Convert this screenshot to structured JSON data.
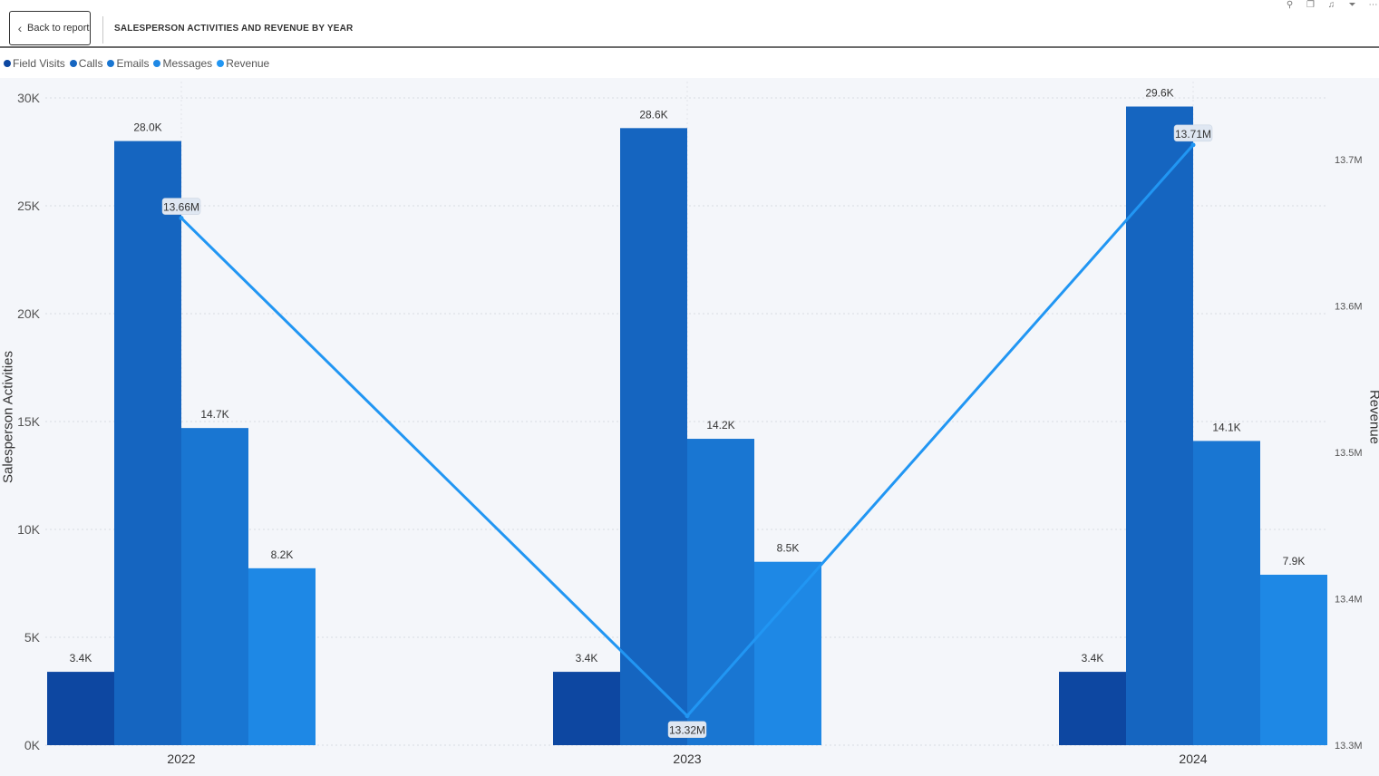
{
  "header": {
    "back_label": "Back to report",
    "title": "SALESPERSON ACTIVITIES AND REVENUE BY YEAR"
  },
  "icons": [
    "pin-icon",
    "copy-icon",
    "bell-icon",
    "filter-icon",
    "more-icon"
  ],
  "colors": {
    "field_visits": "#0d47a1",
    "calls": "#1565c0",
    "emails": "#1976d2",
    "messages": "#1e88e5",
    "revenue": "#2196f3"
  },
  "chart_data": {
    "type": "bar",
    "categories": [
      "2022",
      "2023",
      "2024"
    ],
    "ylabel": "Salesperson Activities",
    "y2label": "Revenue",
    "ylim": [
      0,
      30000
    ],
    "y2lim": [
      13.3,
      13.75
    ],
    "y_ticks": [
      "0K",
      "5K",
      "10K",
      "15K",
      "20K",
      "25K",
      "30K"
    ],
    "y2_ticks": [
      "13.3M",
      "13.4M",
      "13.5M",
      "13.6M",
      "13.7M"
    ],
    "grid": true,
    "legend_position": "top-left",
    "series": [
      {
        "name": "Field Visits",
        "values": [
          3400,
          3400,
          3400
        ],
        "labels": [
          "3.4K",
          "3.4K",
          "3.4K"
        ]
      },
      {
        "name": "Calls",
        "values": [
          28000,
          28600,
          29600
        ],
        "labels": [
          "28.0K",
          "28.6K",
          "29.6K"
        ]
      },
      {
        "name": "Emails",
        "values": [
          14700,
          14200,
          14100
        ],
        "labels": [
          "14.7K",
          "14.2K",
          "14.1K"
        ]
      },
      {
        "name": "Messages",
        "values": [
          8200,
          8500,
          7900
        ],
        "labels": [
          "8.2K",
          "8.5K",
          "7.9K"
        ]
      }
    ],
    "line_series": {
      "name": "Revenue",
      "axis": "secondary",
      "values": [
        13.66,
        13.32,
        13.71
      ],
      "labels": [
        "13.66M",
        "13.32M",
        "13.71M"
      ]
    }
  }
}
